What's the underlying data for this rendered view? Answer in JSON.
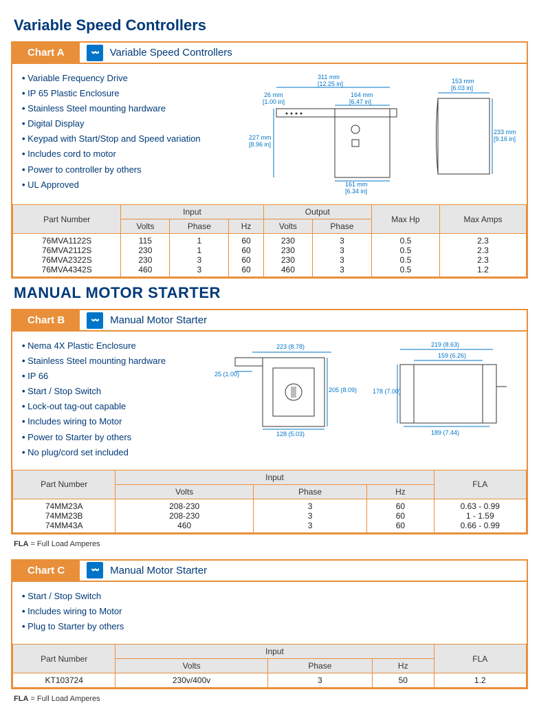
{
  "colors": {
    "brand_blue": "#003a78",
    "accent_orange": "#e98f3a",
    "icon_blue": "#0074c8",
    "header_gray": "#e6e6e6"
  },
  "sectionA": {
    "title": "Variable Speed Controllers",
    "chart_label": "Chart A",
    "panel_title": "Variable Speed Controllers",
    "features": [
      "Variable Frequency Drive",
      "IP 65 Plastic Enclosure",
      "Stainless Steel mounting hardware",
      "Digital Display",
      "Keypad with Start/Stop and Speed variation",
      "Includes cord to motor",
      "Power to controller by others",
      "UL Approved"
    ],
    "dims": {
      "front": {
        "w_mm": "311 mm",
        "w_in": "[12.25 in]",
        "left_mm": "26 mm",
        "left_in": "[1.00 in]",
        "inner_w_mm": "164 mm",
        "inner_w_in": "[6.47 in]",
        "h_mm": "227 mm",
        "h_in": "[8.96 in]",
        "btm_mm": "161 mm",
        "btm_in": "[6.34 in]"
      },
      "side": {
        "w_mm": "153 mm",
        "w_in": "[6.03 in]",
        "h_mm": "233 mm",
        "h_in": "[9.16 in]"
      }
    },
    "table": {
      "columns": [
        "Part Number",
        "Volts",
        "Phase",
        "Hz",
        "Volts",
        "Phase",
        "Max Hp",
        "Max Amps"
      ],
      "group_headers": {
        "input": "Input",
        "output": "Output"
      },
      "rows": [
        [
          "76MVA1122S",
          "115",
          "1",
          "60",
          "230",
          "3",
          "0.5",
          "2.3"
        ],
        [
          "76MVA2112S",
          "230",
          "1",
          "60",
          "230",
          "3",
          "0.5",
          "2.3"
        ],
        [
          "76MVA2322S",
          "230",
          "3",
          "60",
          "230",
          "3",
          "0.5",
          "2.3"
        ],
        [
          "76MVA4342S",
          "460",
          "3",
          "60",
          "460",
          "3",
          "0.5",
          "1.2"
        ]
      ]
    }
  },
  "sectionB": {
    "title": "MANUAL MOTOR STARTER",
    "chart_label": "Chart B",
    "panel_title": "Manual Motor Starter",
    "features": [
      "Nema 4X Plastic Enclosure",
      "Stainless Steel mounting hardware",
      "IP 66",
      "Start / Stop Switch",
      "Lock-out tag-out capable",
      "Includes wiring to Motor",
      "Power to Starter by others",
      "No plug/cord set included"
    ],
    "dims": {
      "front": {
        "w": "223 (8.78)",
        "left": "25 (1.00)",
        "h": "205 (8.09)",
        "btm": "128 (5.03)"
      },
      "side": {
        "w": "219 (8.63)",
        "inner_w": "159 (6.26)",
        "h": "178 (7.00)",
        "btm": "189 (7.44)"
      }
    },
    "table": {
      "columns": [
        "Part Number",
        "Volts",
        "Phase",
        "Hz",
        "FLA"
      ],
      "group_headers": {
        "input": "Input"
      },
      "rows": [
        [
          "74MM23A",
          "208-230",
          "3",
          "60",
          "0.63 - 0.99"
        ],
        [
          "74MM23B",
          "208-230",
          "3",
          "60",
          "1 - 1.59"
        ],
        [
          "74MM43A",
          "460",
          "3",
          "60",
          "0.66 - 0.99"
        ]
      ]
    },
    "footnote_label": "FLA",
    "footnote_text": " = Full Load Amperes"
  },
  "sectionC": {
    "chart_label": "Chart C",
    "panel_title": "Manual Motor Starter",
    "features": [
      "Start / Stop Switch",
      "Includes wiring to Motor",
      "Plug to Starter by others"
    ],
    "table": {
      "columns": [
        "Part Number",
        "Volts",
        "Phase",
        "Hz",
        "FLA"
      ],
      "group_headers": {
        "input": "Input"
      },
      "rows": [
        [
          "KT103724",
          "230v/400v",
          "3",
          "50",
          "1.2"
        ]
      ]
    },
    "footnote_label": "FLA",
    "footnote_text": " = Full Load Amperes"
  }
}
